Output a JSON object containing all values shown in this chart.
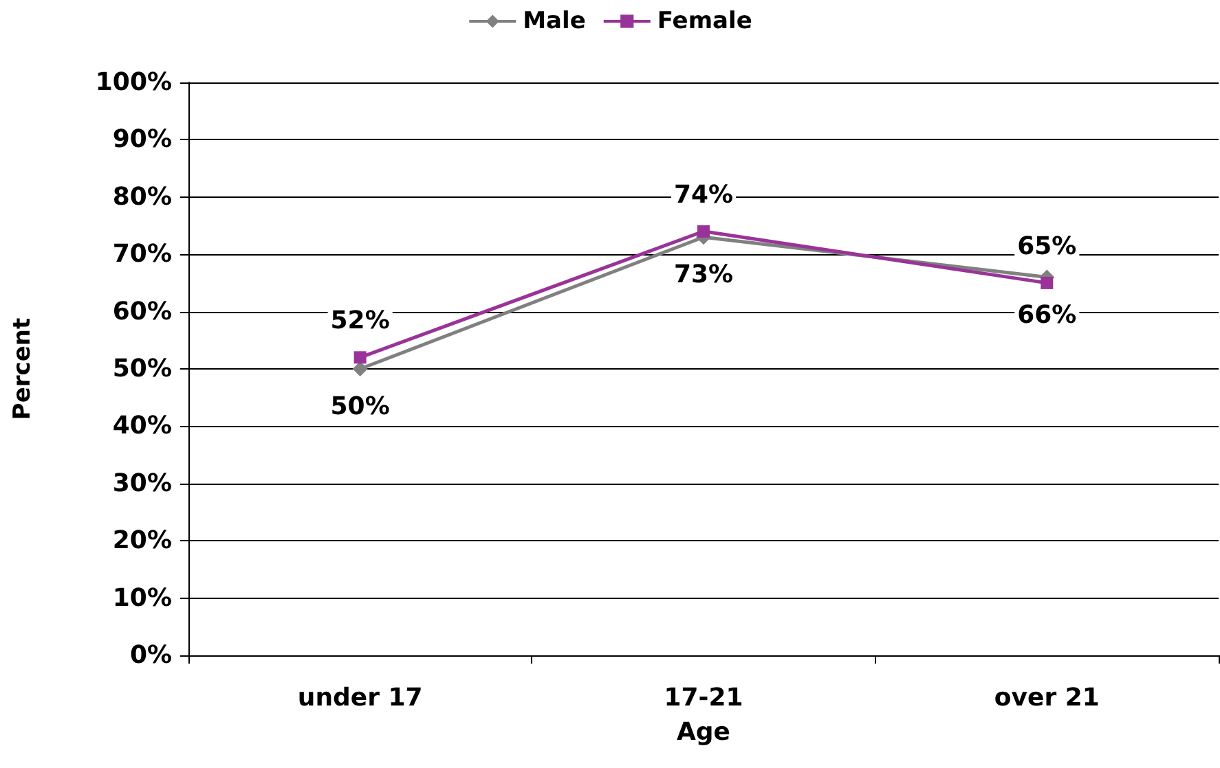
{
  "chart_data": {
    "type": "line",
    "xlabel": "Age",
    "ylabel": "Percent",
    "categories": [
      "under 17",
      "17-21",
      "over 21"
    ],
    "series": [
      {
        "name": "Male",
        "color": "#808080",
        "marker": "diamond",
        "values": [
          50,
          73,
          66
        ],
        "value_labels": [
          "50%",
          "73%",
          "66%"
        ]
      },
      {
        "name": "Female",
        "color": "#993399",
        "marker": "square",
        "values": [
          52,
          74,
          65
        ],
        "value_labels": [
          "52%",
          "74%",
          "65%"
        ]
      }
    ],
    "ylim": [
      0,
      100
    ],
    "yticks": [
      {
        "value": 0,
        "label": "0%"
      },
      {
        "value": 10,
        "label": "10%"
      },
      {
        "value": 20,
        "label": "20%"
      },
      {
        "value": 30,
        "label": "30%"
      },
      {
        "value": 40,
        "label": "40%"
      },
      {
        "value": 50,
        "label": "50%"
      },
      {
        "value": 60,
        "label": "60%"
      },
      {
        "value": 70,
        "label": "70%"
      },
      {
        "value": 80,
        "label": "80%"
      },
      {
        "value": 90,
        "label": "90%"
      },
      {
        "value": 100,
        "label": "100%"
      }
    ],
    "grid": "y",
    "legend": "top",
    "line_style": "solid"
  }
}
